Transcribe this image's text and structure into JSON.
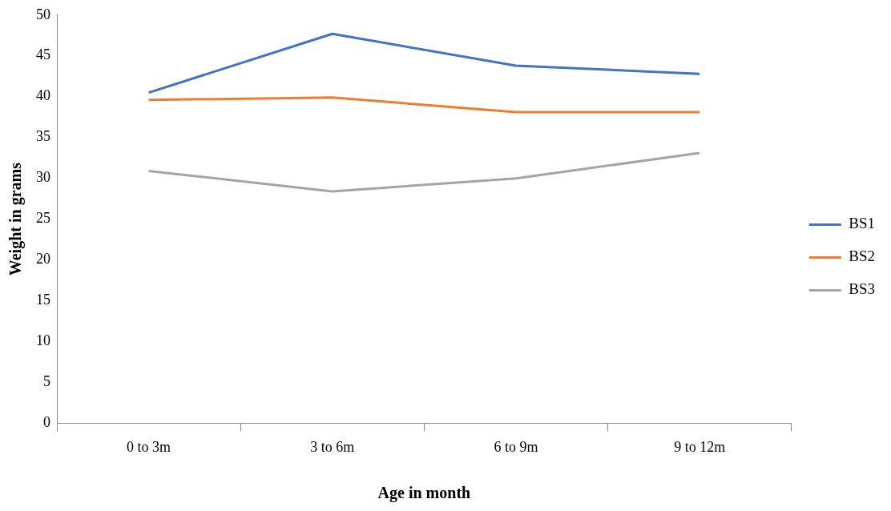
{
  "chart_data": {
    "type": "line",
    "xlabel": "Age in month",
    "ylabel": "Weight in grams",
    "categories": [
      "0 to 3m",
      "3 to 6m",
      "6 to 9m",
      "9 to 12m"
    ],
    "series": [
      {
        "name": "BS1",
        "color": "#4472c4",
        "values": [
          40.5,
          47.7,
          43.8,
          42.8
        ]
      },
      {
        "name": "BS2",
        "color": "#ed7d31",
        "values": [
          39.6,
          39.9,
          38.1,
          38.1
        ]
      },
      {
        "name": "BS3",
        "color": "#a5a5a5",
        "values": [
          30.9,
          28.4,
          30.0,
          33.1
        ]
      }
    ],
    "ylim": [
      0,
      50
    ],
    "yticks": [
      0,
      5,
      10,
      15,
      20,
      25,
      30,
      35,
      40,
      45,
      50
    ],
    "grid": false,
    "legend": "right",
    "marker": "none",
    "line_style": "solid"
  }
}
